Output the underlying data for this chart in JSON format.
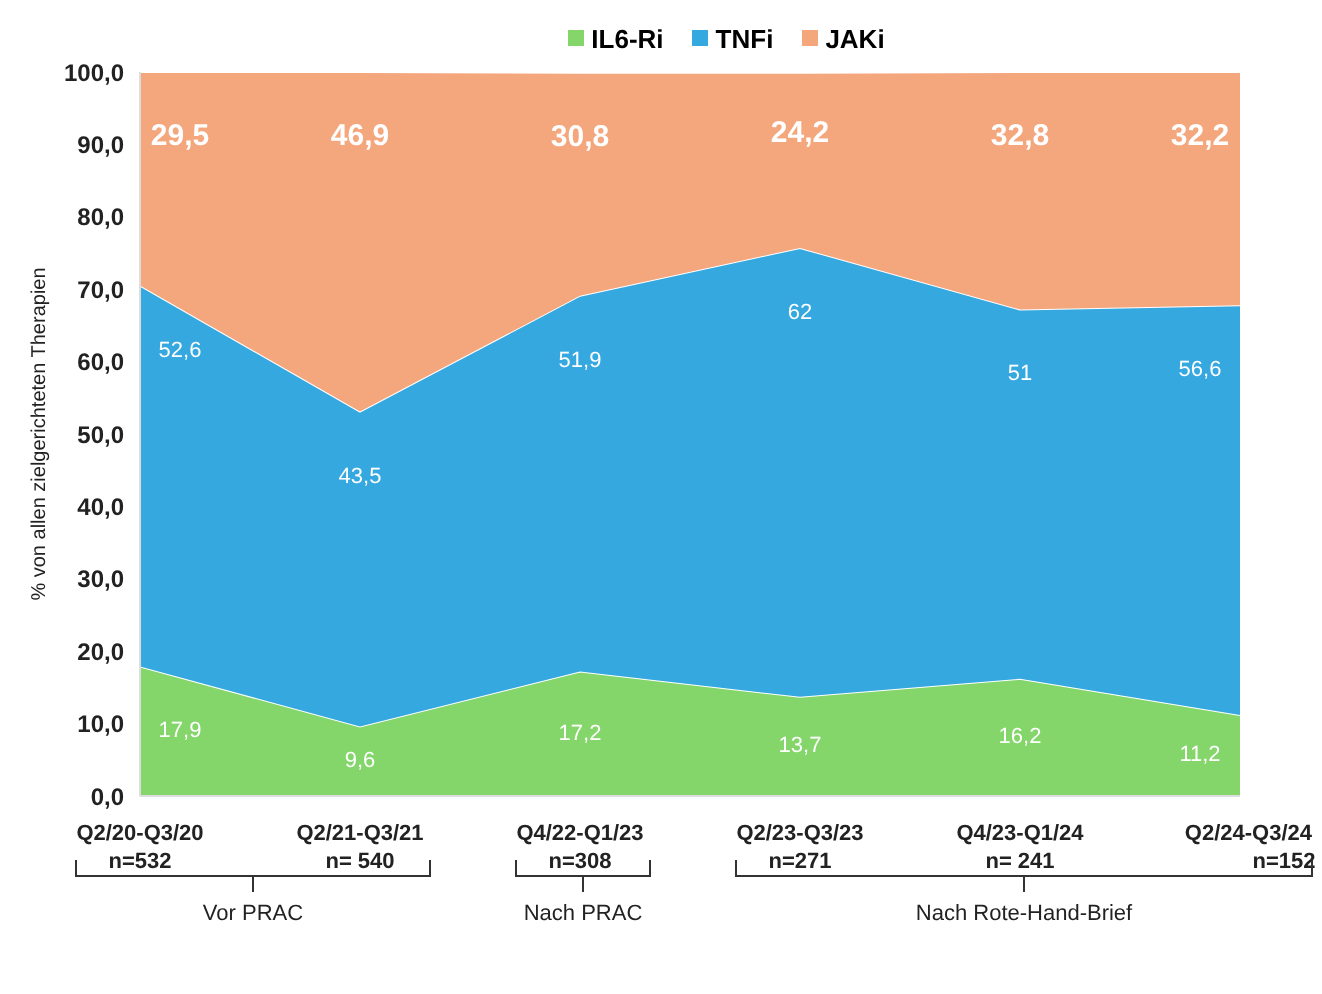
{
  "chart_data": {
    "type": "area",
    "stacked": true,
    "ylabel": "% von allen zielgerichteten Therapien",
    "categories": [
      "Q2/20-Q3/20\nn=532",
      "Q2/21-Q3/21\nn= 540",
      "Q4/22-Q1/23\nn=308",
      "Q2/23-Q3/23\nn=271",
      "Q4/23-Q1/24\nn= 241",
      "Q2/24-Q3/24\nn=152"
    ],
    "series": [
      {
        "name": "IL6-Ri",
        "color": "#84d66b",
        "values": [
          17.9,
          9.6,
          17.2,
          13.7,
          16.2,
          11.2
        ],
        "value_labels": [
          "17,9",
          "9,6",
          "17,2",
          "13,7",
          "16,2",
          "11,2"
        ]
      },
      {
        "name": "TNFi",
        "color": "#35a8e0",
        "values": [
          52.6,
          43.5,
          51.9,
          62,
          51,
          56.6
        ],
        "value_labels": [
          "52,6",
          "43,5",
          "51,9",
          "62",
          "51",
          "56,6"
        ]
      },
      {
        "name": "JAKi",
        "color": "#f4a67c",
        "values": [
          29.5,
          46.9,
          30.8,
          24.2,
          32.8,
          32.2
        ],
        "value_labels": [
          "29,5",
          "46,9",
          "30,8",
          "24,2",
          "32,8",
          "32,2"
        ]
      }
    ],
    "ylim": [
      0,
      100
    ],
    "yticks": [
      {
        "value": 0,
        "label": "0,0"
      },
      {
        "value": 10,
        "label": "10,0"
      },
      {
        "value": 20,
        "label": "20,0"
      },
      {
        "value": 30,
        "label": "30,0"
      },
      {
        "value": 40,
        "label": "40,0"
      },
      {
        "value": 50,
        "label": "50,0"
      },
      {
        "value": 60,
        "label": "60,0"
      },
      {
        "value": 70,
        "label": "70,0"
      },
      {
        "value": 80,
        "label": "80,0"
      },
      {
        "value": 90,
        "label": "90,0"
      },
      {
        "value": 100,
        "label": "100,0"
      }
    ],
    "grid": false,
    "legend": "top",
    "annotations": [
      "Vor PRAC",
      "Nach PRAC",
      "Nach Rote-Hand-Brief"
    ]
  }
}
